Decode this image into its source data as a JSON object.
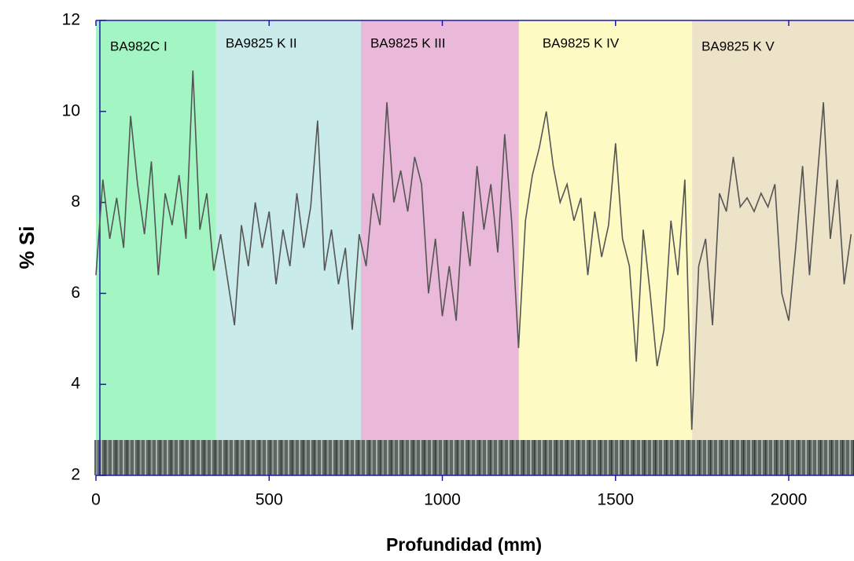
{
  "chart_data": {
    "type": "line",
    "xlabel": "Profundidad (mm)",
    "ylabel": "% Si",
    "xlim": [
      0,
      2190
    ],
    "ylim": [
      2,
      12
    ],
    "xticks": [
      0,
      500,
      1000,
      1500,
      2000
    ],
    "yticks": [
      2,
      4,
      6,
      8,
      10,
      12
    ],
    "regions": [
      {
        "label": "BA982C I",
        "start": 0,
        "end": 347,
        "color": "#a3f5c3"
      },
      {
        "label": "BA9825 K II",
        "start": 347,
        "end": 765,
        "color": "#c9ebe9"
      },
      {
        "label": "BA9825 K III",
        "start": 765,
        "end": 1221,
        "color": "#eab8d8"
      },
      {
        "label": "BA9825 K IV",
        "start": 1221,
        "end": 1721,
        "color": "#fdfbc3"
      },
      {
        "label": "BA9825 K V",
        "start": 1721,
        "end": 2190,
        "color": "#ece3c9"
      }
    ],
    "series": [
      {
        "color": "#555555",
        "x": [
          0,
          20,
          40,
          60,
          80,
          100,
          120,
          140,
          160,
          180,
          200,
          220,
          240,
          260,
          280,
          300,
          320,
          340,
          360,
          380,
          400,
          420,
          440,
          460,
          480,
          500,
          520,
          540,
          560,
          580,
          600,
          620,
          640,
          660,
          680,
          700,
          720,
          740,
          760,
          780,
          800,
          820,
          840,
          860,
          880,
          900,
          920,
          940,
          960,
          980,
          1000,
          1020,
          1040,
          1060,
          1080,
          1100,
          1120,
          1140,
          1160,
          1180,
          1200,
          1220,
          1240,
          1260,
          1280,
          1300,
          1320,
          1340,
          1360,
          1380,
          1400,
          1420,
          1440,
          1460,
          1480,
          1500,
          1520,
          1540,
          1560,
          1580,
          1600,
          1620,
          1640,
          1660,
          1680,
          1700,
          1720,
          1740,
          1760,
          1780,
          1800,
          1820,
          1840,
          1860,
          1880,
          1900,
          1920,
          1940,
          1960,
          1980,
          2000,
          2020,
          2040,
          2060,
          2080,
          2100,
          2120,
          2140,
          2160,
          2180
        ],
        "values": [
          6.4,
          8.5,
          7.2,
          8.1,
          7.0,
          9.9,
          8.4,
          7.3,
          8.9,
          6.4,
          8.2,
          7.5,
          8.6,
          7.2,
          10.9,
          7.4,
          8.2,
          6.5,
          7.3,
          6.3,
          5.3,
          7.5,
          6.6,
          8.0,
          7.0,
          7.8,
          6.2,
          7.4,
          6.6,
          8.2,
          7.0,
          7.9,
          9.8,
          6.5,
          7.4,
          6.2,
          7.0,
          5.2,
          7.3,
          6.6,
          8.2,
          7.5,
          10.2,
          8.0,
          8.7,
          7.8,
          9.0,
          8.4,
          6.0,
          7.2,
          5.5,
          6.6,
          5.4,
          7.8,
          6.6,
          8.8,
          7.4,
          8.4,
          6.9,
          9.5,
          7.6,
          4.8,
          7.6,
          8.6,
          9.2,
          10.0,
          8.8,
          8.0,
          8.4,
          7.6,
          8.1,
          6.4,
          7.8,
          6.8,
          7.5,
          9.3,
          7.2,
          6.6,
          4.5,
          7.4,
          6.0,
          4.4,
          5.2,
          7.6,
          6.4,
          8.5,
          3.0,
          6.6,
          7.2,
          5.3,
          8.2,
          7.8,
          9.0,
          7.9,
          8.1,
          7.8,
          8.2,
          7.9,
          8.4,
          6.0,
          5.4,
          7.0,
          8.8,
          6.4,
          8.3,
          10.2,
          7.2,
          8.5,
          6.2,
          7.3
        ]
      }
    ]
  }
}
